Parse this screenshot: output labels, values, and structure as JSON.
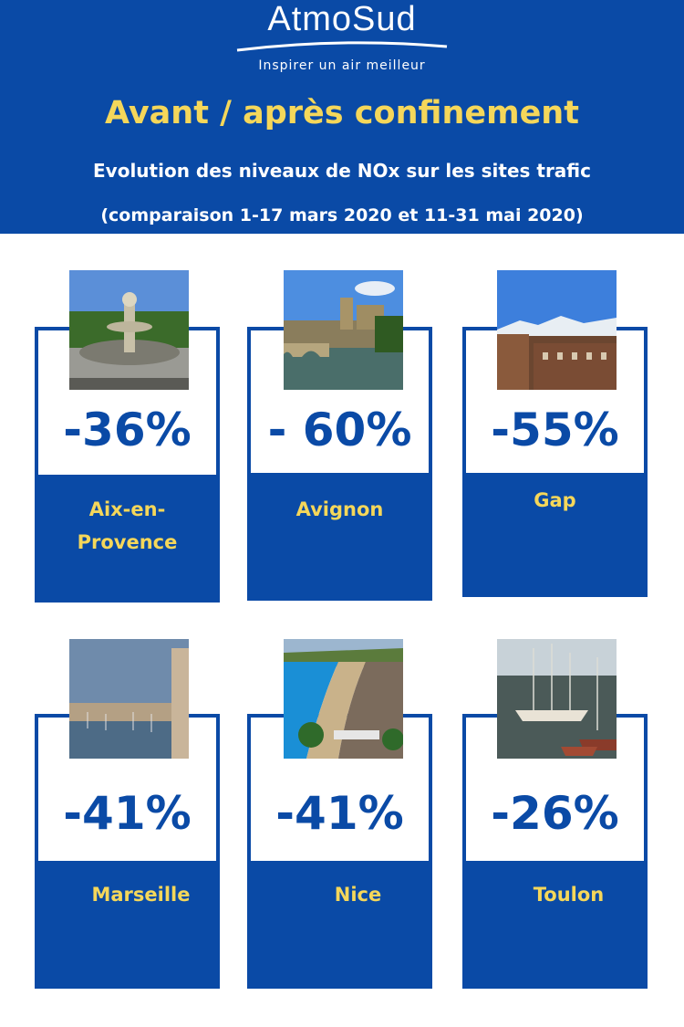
{
  "brand": {
    "name": "AtmoSud",
    "tagline": "Inspirer un air meilleur",
    "colors": {
      "primary": "#0a4aa6",
      "accent": "#f5d75a",
      "text_light": "#ffffff"
    }
  },
  "header": {
    "title": "Avant / après confinement",
    "subtitle": "Evolution des niveaux de NOx sur les sites trafic",
    "period": "(comparaison 1-17 mars 2020 et 11-31 mai 2020)"
  },
  "cities": [
    {
      "value": "-36%",
      "name_line1": "Aix-en-",
      "name_line2": "Provence",
      "photo": "fountain-photo"
    },
    {
      "value": "- 60%",
      "name_line1": "Avignon",
      "name_line2": "",
      "photo": "bridge-photo"
    },
    {
      "value": "-55%",
      "name_line1": "Gap",
      "name_line2": "",
      "photo": "mountain-town-photo"
    },
    {
      "value": "-41%",
      "name_line1": "Marseille",
      "name_line2": "",
      "photo": "harbor-photo"
    },
    {
      "value": "-41%",
      "name_line1": "Nice",
      "name_line2": "",
      "photo": "beach-photo"
    },
    {
      "value": "-26%",
      "name_line1": "Toulon",
      "name_line2": "",
      "photo": "marina-photo"
    }
  ]
}
